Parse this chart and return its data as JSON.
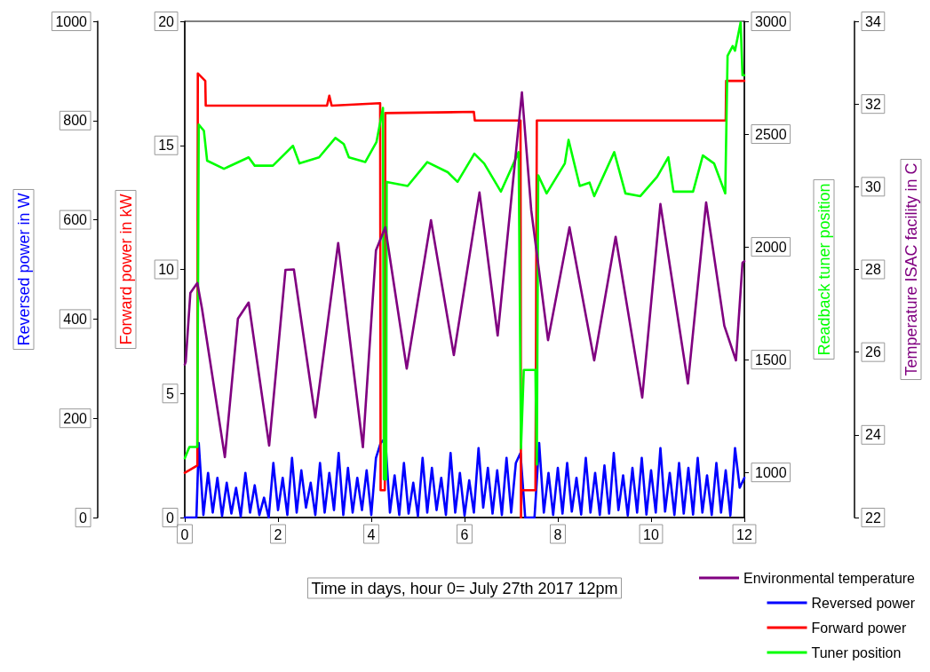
{
  "chart_data": [
    {
      "type": "line",
      "xlabel": "Time in days, hour 0= July 27th 2017 12pm",
      "ylabel": "Forward power in kW",
      "y2label": "Readback tuner position",
      "y3label": "Reversed power in W",
      "xlim": [
        0,
        12
      ],
      "xticks": [
        0,
        2,
        4,
        6,
        8,
        10,
        12
      ],
      "ylim": [
        0,
        20
      ],
      "yticks": [
        0,
        5,
        10,
        15,
        20
      ],
      "y2lim": [
        800,
        3000
      ],
      "y2ticks": [
        1000,
        1500,
        2000,
        2500,
        3000
      ],
      "y3lim": [
        0,
        1000
      ],
      "y3ticks": [
        0,
        200,
        400,
        600,
        800,
        1000
      ],
      "grid": false,
      "legend": "bottom right",
      "marker": "none",
      "line_style": "solid",
      "series": [
        {
          "name": "Reversed power",
          "color": "#0000ff",
          "axis": "y3",
          "x": [
            0,
            0.25,
            0.3,
            0.4,
            0.5,
            0.6,
            0.7,
            0.8,
            0.9,
            1.0,
            1.1,
            1.2,
            1.3,
            1.4,
            1.5,
            1.6,
            1.7,
            1.8,
            1.9,
            2.0,
            2.1,
            2.2,
            2.3,
            2.4,
            2.5,
            2.6,
            2.7,
            2.8,
            2.9,
            3.0,
            3.1,
            3.2,
            3.3,
            3.4,
            3.5,
            3.6,
            3.7,
            3.8,
            3.9,
            4.0,
            4.1,
            4.2,
            4.3,
            4.4,
            4.5,
            4.6,
            4.7,
            4.8,
            4.9,
            5.0,
            5.1,
            5.2,
            5.3,
            5.4,
            5.5,
            5.6,
            5.7,
            5.8,
            5.9,
            6.0,
            6.1,
            6.2,
            6.3,
            6.4,
            6.5,
            6.6,
            6.7,
            6.8,
            6.9,
            7.0,
            7.1,
            7.2,
            7.3,
            7.4,
            7.5,
            7.6,
            7.7,
            7.8,
            7.9,
            8.0,
            8.1,
            8.2,
            8.3,
            8.4,
            8.5,
            8.6,
            8.7,
            8.8,
            8.9,
            9.0,
            9.1,
            9.2,
            9.3,
            9.4,
            9.5,
            9.6,
            9.7,
            9.8,
            9.9,
            10.0,
            10.1,
            10.2,
            10.3,
            10.4,
            10.5,
            10.6,
            10.7,
            10.8,
            10.9,
            11.0,
            11.1,
            11.2,
            11.3,
            11.4,
            11.5,
            11.6,
            11.7,
            11.8,
            11.9,
            12.0
          ],
          "values": [
            0,
            0,
            150,
            5,
            90,
            10,
            80,
            3,
            70,
            8,
            60,
            2,
            90,
            10,
            65,
            5,
            40,
            0,
            110,
            15,
            80,
            5,
            120,
            10,
            95,
            20,
            70,
            5,
            110,
            10,
            90,
            15,
            130,
            5,
            100,
            10,
            80,
            15,
            95,
            5,
            120,
            150,
            160,
            10,
            85,
            5,
            110,
            8,
            70,
            3,
            120,
            10,
            100,
            15,
            80,
            5,
            130,
            10,
            90,
            4,
            75,
            10,
            140,
            20,
            100,
            8,
            95,
            5,
            120,
            10,
            110,
            130,
            0,
            0,
            0,
            150,
            10,
            90,
            5,
            100,
            8,
            110,
            12,
            80,
            6,
            120,
            10,
            90,
            5,
            105,
            8,
            130,
            15,
            85,
            4,
            100,
            10,
            120,
            6,
            95,
            10,
            140,
            12,
            90,
            5,
            110,
            8,
            100,
            6,
            120,
            10,
            85,
            5,
            110,
            10,
            95,
            4,
            140,
            60,
            80
          ]
        },
        {
          "name": "Forward power",
          "color": "#ff0000",
          "axis": "y",
          "x": [
            0,
            0.27,
            0.28,
            0.44,
            0.45,
            3.05,
            3.1,
            3.15,
            4.19,
            4.2,
            4.29,
            4.3,
            6.2,
            6.22,
            7.2,
            7.21,
            7.22,
            7.52,
            7.55,
            11.6,
            11.61,
            12
          ],
          "values": [
            1.8,
            2.1,
            17.9,
            17.6,
            16.6,
            16.6,
            17.0,
            16.6,
            16.7,
            1.1,
            1.1,
            16.3,
            16.35,
            16.0,
            16.0,
            0,
            1.1,
            1.1,
            16.0,
            16.0,
            17.6,
            17.6
          ]
        },
        {
          "name": "Tuner position",
          "color": "#00ff00",
          "axis": "y2",
          "x": [
            0,
            0.1,
            0.27,
            0.3,
            0.41,
            0.48,
            0.84,
            1.37,
            1.5,
            1.89,
            2.32,
            2.46,
            2.88,
            3.23,
            3.41,
            3.52,
            3.87,
            4.11,
            4.25,
            4.27,
            4.32,
            4.33,
            4.78,
            5.2,
            5.64,
            5.85,
            6.21,
            6.42,
            6.78,
            7.16,
            7.21,
            7.27,
            7.52,
            7.55,
            7.58,
            7.76,
            8.15,
            8.23,
            8.47,
            8.68,
            8.78,
            9.21,
            9.45,
            9.77,
            10.13,
            10.37,
            10.48,
            10.9,
            11.11,
            11.35,
            11.59,
            11.64,
            11.75,
            11.8,
            11.92,
            11.96,
            12
          ],
          "values": [
            1063,
            1113,
            1113,
            2542,
            2515,
            2382,
            2346,
            2397,
            2360,
            2360,
            2448,
            2370,
            2397,
            2483,
            2456,
            2397,
            2376,
            2464,
            2616,
            969,
            969,
            2288,
            2270,
            2376,
            2331,
            2288,
            2413,
            2370,
            2245,
            2420,
            1106,
            1454,
            1454,
            1035,
            2317,
            2237,
            2370,
            2474,
            2270,
            2285,
            2225,
            2420,
            2237,
            2225,
            2311,
            2397,
            2245,
            2245,
            2405,
            2370,
            2237,
            2847,
            2890,
            2870,
            2995,
            2761,
            2761
          ]
        }
      ]
    },
    {
      "type": "line",
      "y2label": "Temperature ISAC facility in C",
      "xlim": [
        0,
        12
      ],
      "y2lim": [
        22,
        34
      ],
      "y2ticks": [
        22,
        24,
        26,
        28,
        30,
        32,
        34
      ],
      "tick_labels": "y",
      "grid": false,
      "legend": "bottom right",
      "marker": "none",
      "line_style": "solid",
      "series": [
        {
          "name": "Environmental temperature",
          "color": "#800080",
          "axis": "y2",
          "x": [
            0,
            0.02,
            0.12,
            0.27,
            0.37,
            0.86,
            1.14,
            1.37,
            1.81,
            2.16,
            2.34,
            2.8,
            3.29,
            3.82,
            4.1,
            4.3,
            4.76,
            5.28,
            5.77,
            6.32,
            6.71,
            7.23,
            7.43,
            7.79,
            8.25,
            8.78,
            9.24,
            9.81,
            10.2,
            10.79,
            11.18,
            11.57,
            11.82,
            11.96,
            12
          ],
          "values": [
            25.7,
            25.76,
            27.43,
            27.67,
            27.05,
            23.46,
            26.81,
            27.2,
            23.74,
            27.99,
            28.0,
            24.42,
            28.64,
            23.7,
            28.46,
            29.02,
            25.6,
            29.19,
            25.93,
            29.86,
            26.4,
            32.28,
            29.43,
            26.29,
            29.02,
            25.8,
            28.79,
            24.9,
            29.58,
            25.24,
            29.62,
            26.64,
            25.8,
            28.16,
            28.2
          ]
        }
      ]
    }
  ]
}
